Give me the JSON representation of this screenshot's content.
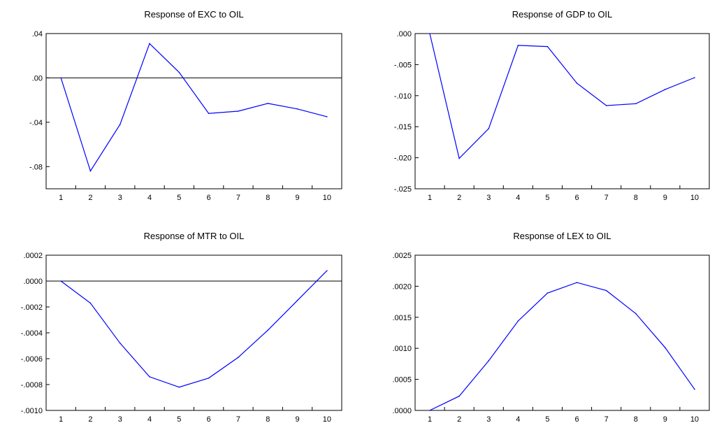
{
  "line_color": "#0000ff",
  "chart_data": [
    {
      "type": "line",
      "title": "Response of EXC to OIL",
      "x": [
        1,
        2,
        3,
        4,
        5,
        6,
        7,
        8,
        9,
        10
      ],
      "values": [
        0.0,
        -0.084,
        -0.042,
        0.031,
        0.005,
        -0.032,
        -0.03,
        -0.023,
        -0.028,
        -0.035
      ],
      "ylim": [
        -0.1,
        0.04
      ],
      "yticks": [
        0.04,
        0.0,
        -0.04,
        -0.08
      ],
      "ytick_labels": [
        ".04",
        ".00",
        "-.04",
        "-.08"
      ],
      "xtick_labels": [
        "1",
        "2",
        "3",
        "4",
        "5",
        "6",
        "7",
        "8",
        "9",
        "10"
      ],
      "zero_line": true
    },
    {
      "type": "line",
      "title": "Response of GDP to OIL",
      "x": [
        1,
        2,
        3,
        4,
        5,
        6,
        7,
        8,
        9,
        10
      ],
      "values": [
        0.0,
        -0.0201,
        -0.0153,
        -0.0019,
        -0.0021,
        -0.008,
        -0.0116,
        -0.0113,
        -0.009,
        -0.0071
      ],
      "ylim": [
        -0.025,
        0.0
      ],
      "yticks": [
        0.0,
        -0.005,
        -0.01,
        -0.015,
        -0.02,
        -0.025
      ],
      "ytick_labels": [
        ".000",
        "-.005",
        "-.010",
        "-.015",
        "-.020",
        "-.025"
      ],
      "xtick_labels": [
        "1",
        "2",
        "3",
        "4",
        "5",
        "6",
        "7",
        "8",
        "9",
        "10"
      ],
      "zero_line": false
    },
    {
      "type": "line",
      "title": "Response of MTR to OIL",
      "x": [
        1,
        2,
        3,
        4,
        5,
        6,
        7,
        8,
        9,
        10
      ],
      "values": [
        0.0,
        -0.00017,
        -0.00048,
        -0.00074,
        -0.00082,
        -0.00075,
        -0.00059,
        -0.00038,
        -0.00015,
        8e-05
      ],
      "ylim": [
        -0.001,
        0.0002
      ],
      "yticks": [
        0.0002,
        0.0,
        -0.0002,
        -0.0004,
        -0.0006,
        -0.0008,
        -0.001
      ],
      "ytick_labels": [
        ".0002",
        ".0000",
        "-.0002",
        "-.0004",
        "-.0006",
        "-.0008",
        "-.0010"
      ],
      "xtick_labels": [
        "1",
        "2",
        "3",
        "4",
        "5",
        "6",
        "7",
        "8",
        "9",
        "10"
      ],
      "zero_line": true
    },
    {
      "type": "line",
      "title": "Response of LEX to OIL",
      "x": [
        1,
        2,
        3,
        4,
        5,
        6,
        7,
        8,
        9,
        10
      ],
      "values": [
        0.0,
        0.00023,
        0.0008,
        0.00144,
        0.00189,
        0.00206,
        0.00193,
        0.00156,
        0.00101,
        0.00034
      ],
      "ylim": [
        0.0,
        0.0025
      ],
      "yticks": [
        0.0025,
        0.002,
        0.0015,
        0.001,
        0.0005,
        0.0
      ],
      "ytick_labels": [
        ".0025",
        ".0020",
        ".0015",
        ".0010",
        ".0005",
        ".0000"
      ],
      "xtick_labels": [
        "1",
        "2",
        "3",
        "4",
        "5",
        "6",
        "7",
        "8",
        "9",
        "10"
      ],
      "zero_line": false
    }
  ]
}
